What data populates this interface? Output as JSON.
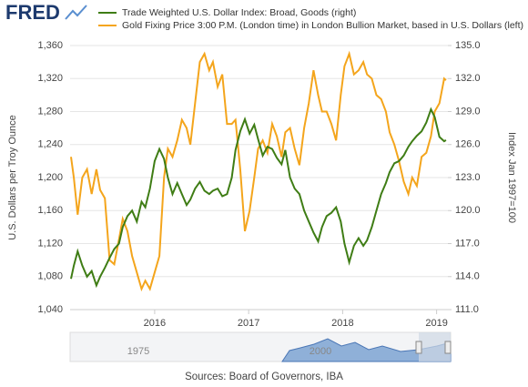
{
  "logo": "FRED",
  "source": "Sources: Board of Governors, IBA",
  "navigator": {
    "labels": [
      "1975",
      "2000"
    ]
  },
  "chart_data": {
    "type": "line",
    "ylabel": "U.S. Dollars per Troy Ounce",
    "y2label": "Index Jan 1997=100",
    "x": [
      2015.11,
      2015.14,
      2015.18,
      2015.23,
      2015.28,
      2015.33,
      2015.38,
      2015.42,
      2015.47,
      2015.52,
      2015.57,
      2015.62,
      2015.66,
      2015.71,
      2015.76,
      2015.81,
      2015.86,
      2015.9,
      2015.95,
      2016.0,
      2016.05,
      2016.1,
      2016.14,
      2016.19,
      2016.24,
      2016.29,
      2016.34,
      2016.38,
      2016.43,
      2016.48,
      2016.53,
      2016.58,
      2016.62,
      2016.67,
      2016.72,
      2016.77,
      2016.82,
      2016.86,
      2016.91,
      2016.96,
      2017.01,
      2017.06,
      2017.1,
      2017.15,
      2017.2,
      2017.25,
      2017.3,
      2017.35,
      2017.39,
      2017.44,
      2017.49,
      2017.54,
      2017.59,
      2017.64,
      2017.69,
      2017.74,
      2017.78,
      2017.83,
      2017.88,
      2017.93,
      2017.98,
      2018.02,
      2018.07,
      2018.12,
      2018.17,
      2018.22,
      2018.26,
      2018.31,
      2018.36,
      2018.41,
      2018.46,
      2018.5,
      2018.55,
      2018.6,
      2018.65,
      2018.7,
      2018.74,
      2018.79,
      2018.84,
      2018.89,
      2018.94,
      2018.98,
      2019.03,
      2019.08,
      2019.1
    ],
    "series": [
      {
        "name": "Trade Weighted U.S. Dollar Index: Broad, Goods (right)",
        "color": "#3f7d15",
        "axis": "y2",
        "values": [
          113.8,
          115,
          116.3,
          115,
          114,
          114.5,
          113.2,
          114,
          114.8,
          115.7,
          116.5,
          117,
          118.5,
          119.5,
          120,
          119,
          120.8,
          120.3,
          122,
          124.5,
          125.6,
          124.7,
          123,
          121.5,
          122.5,
          121.5,
          120.5,
          121,
          122,
          122.6,
          121.8,
          121.5,
          121.8,
          122,
          121.3,
          121.5,
          123,
          125.5,
          127.2,
          128.3,
          127,
          127.8,
          126.5,
          125,
          125.8,
          125.6,
          124.8,
          124.2,
          125.5,
          123,
          122,
          121.5,
          120,
          119,
          118,
          117.2,
          118.5,
          119.5,
          119.8,
          120.3,
          119,
          117,
          115.3,
          116.8,
          117.5,
          116.8,
          117.3,
          118.5,
          120,
          121.5,
          122.5,
          123.5,
          124.3,
          124.5,
          125,
          125.8,
          126.3,
          126.8,
          127.2,
          128,
          129.2,
          128.5,
          126.7,
          126.3,
          126.4
        ]
      },
      {
        "name": "Gold Fixing Price 3:00 P.M. (London time) in London Bullion Market, based in U.S. Dollars (left)",
        "color": "#f4a51c",
        "values": [
          1225,
          1200,
          1155,
          1200,
          1210,
          1180,
          1210,
          1185,
          1175,
          1100,
          1095,
          1125,
          1150,
          1135,
          1105,
          1085,
          1065,
          1075,
          1065,
          1085,
          1105,
          1200,
          1235,
          1225,
          1245,
          1270,
          1260,
          1240,
          1290,
          1340,
          1350,
          1330,
          1340,
          1310,
          1325,
          1265,
          1265,
          1270,
          1210,
          1135,
          1160,
          1200,
          1235,
          1245,
          1230,
          1265,
          1250,
          1225,
          1255,
          1260,
          1235,
          1215,
          1260,
          1290,
          1330,
          1300,
          1280,
          1280,
          1265,
          1245,
          1300,
          1335,
          1350,
          1325,
          1330,
          1340,
          1325,
          1320,
          1300,
          1295,
          1280,
          1255,
          1240,
          1220,
          1195,
          1180,
          1200,
          1190,
          1225,
          1230,
          1250,
          1280,
          1290,
          1320,
          1318
        ]
      }
    ],
    "xlim": [
      2015.1,
      2019.12
    ],
    "xticks": [
      2016,
      2017,
      2018,
      2019
    ],
    "ylim": [
      1040,
      1360
    ],
    "yticks": [
      {
        "value": 1040,
        "label": "1,040"
      },
      {
        "value": 1080,
        "label": "1,080"
      },
      {
        "value": 1120,
        "label": "1,120"
      },
      {
        "value": 1160,
        "label": "1,160"
      },
      {
        "value": 1200,
        "label": "1,200"
      },
      {
        "value": 1240,
        "label": "1,240"
      },
      {
        "value": 1280,
        "label": "1,280"
      },
      {
        "value": 1320,
        "label": "1,320"
      },
      {
        "value": 1360,
        "label": "1,360"
      }
    ],
    "y2lim": [
      111,
      135
    ],
    "y2ticks": [
      {
        "value": 111,
        "label": "111.0"
      },
      {
        "value": 114,
        "label": "114.0"
      },
      {
        "value": 117,
        "label": "117.0"
      },
      {
        "value": 120,
        "label": "120.0"
      },
      {
        "value": 123,
        "label": "123.0"
      },
      {
        "value": 126,
        "label": "126.0"
      },
      {
        "value": 129,
        "label": "129.0"
      },
      {
        "value": 132,
        "label": "132.0"
      },
      {
        "value": 135,
        "label": "135.0"
      }
    ],
    "grid": true
  }
}
